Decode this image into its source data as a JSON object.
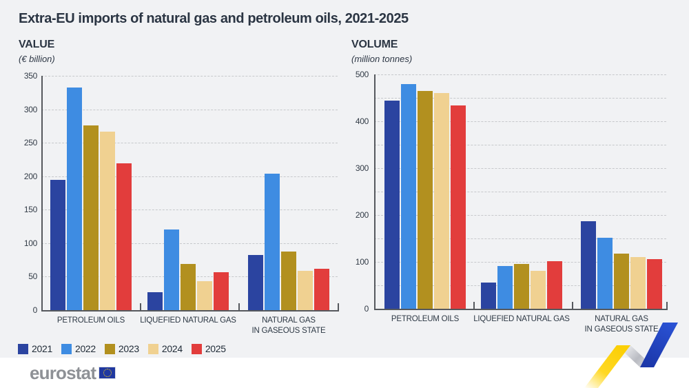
{
  "title": "Extra-EU imports of natural gas and petroleum oils, 2021-2025",
  "footer": {
    "logo_text": "eurostat"
  },
  "legend_years": [
    "2021",
    "2022",
    "2023",
    "2024",
    "2025"
  ],
  "brand_colors": {
    "ribbon_yellow": "#ffd617",
    "ribbon_gray": "#aaacb3",
    "ribbon_blue": "#2144c1",
    "flag_blue": "#2038a0",
    "flag_star_yellow": "#ffd617"
  },
  "chart_data": [
    {
      "type": "bar",
      "title": "VALUE",
      "subtitle": "(€ billion)",
      "categories": [
        "PETROLEUM OILS",
        "LIQUEFIED NATURAL GAS",
        "NATURAL GAS\nIN GASEOUS STATE"
      ],
      "series": [
        {
          "name": "2021",
          "color": "#2B44A0",
          "values": [
            195,
            27,
            82
          ]
        },
        {
          "name": "2022",
          "color": "#3E8CE2",
          "values": [
            333,
            120,
            204
          ]
        },
        {
          "name": "2023",
          "color": "#B2901F",
          "values": [
            276,
            69,
            87
          ]
        },
        {
          "name": "2024",
          "color": "#F0D191",
          "values": [
            267,
            43,
            59
          ]
        },
        {
          "name": "2025",
          "color": "#E23D3C",
          "values": [
            219,
            57,
            62
          ]
        }
      ],
      "ylim": [
        0,
        350
      ],
      "grid_step": 50,
      "label_step": 50,
      "grid": "dashed",
      "legend_position": "bottom-left"
    },
    {
      "type": "bar",
      "title": "VOLUME",
      "subtitle": "(million tonnes)",
      "categories": [
        "PETROLEUM OILS",
        "LIQUEFIED NATURAL GAS",
        "NATURAL GAS\nIN GASEOUS STATE"
      ],
      "series": [
        {
          "name": "2021",
          "color": "#2B44A0",
          "values": [
            444,
            56,
            187
          ]
        },
        {
          "name": "2022",
          "color": "#3E8CE2",
          "values": [
            479,
            91,
            151
          ]
        },
        {
          "name": "2023",
          "color": "#B2901F",
          "values": [
            465,
            95,
            118
          ]
        },
        {
          "name": "2024",
          "color": "#F0D191",
          "values": [
            461,
            81,
            111
          ]
        },
        {
          "name": "2025",
          "color": "#E23D3C",
          "values": [
            434,
            101,
            106
          ]
        }
      ],
      "ylim": [
        0,
        500
      ],
      "grid_step": 50,
      "label_step": 100,
      "grid": "dashed",
      "legend_position": "bottom-left"
    }
  ]
}
